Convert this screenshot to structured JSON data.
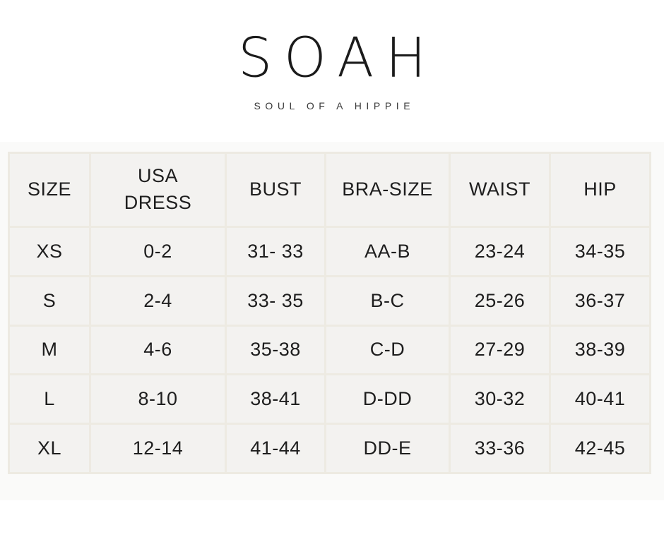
{
  "logo": {
    "title": "SOAH",
    "tagline": "SOUL OF A HIPPIE"
  },
  "size_chart": {
    "columns": [
      "SIZE",
      "USA DRESS",
      "BUST",
      "BRA-SIZE",
      "WAIST",
      "HIP"
    ],
    "rows": [
      [
        "XS",
        "0-2",
        "31- 33",
        "AA-B",
        "23-24",
        "34-35"
      ],
      [
        "S",
        "2-4",
        "33- 35",
        "B-C",
        "25-26",
        "36-37"
      ],
      [
        "M",
        "4-6",
        "35-38",
        "C-D",
        "27-29",
        "38-39"
      ],
      [
        "L",
        "8-10",
        "38-41",
        "D-DD",
        "30-32",
        "40-41"
      ],
      [
        "XL",
        "12-14",
        "41-44",
        "DD-E",
        "33-36",
        "42-45"
      ]
    ],
    "colors": {
      "cell_background": "#f3f2f0",
      "cell_border": "#edeae2",
      "section_background": "#fafaf9",
      "text": "#1e1e1e"
    }
  }
}
